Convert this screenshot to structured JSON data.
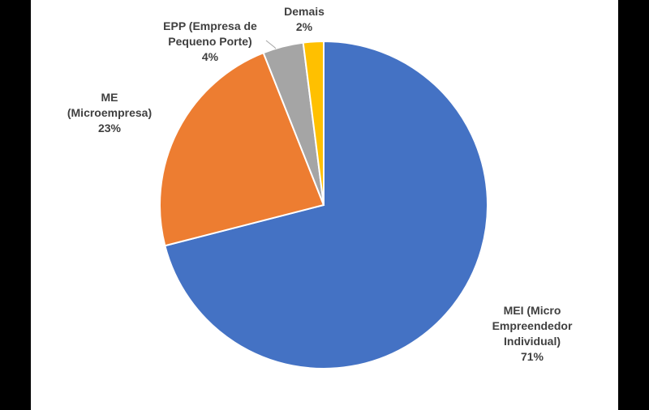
{
  "chart_data": {
    "type": "pie",
    "title": "",
    "start_angle_deg": 0,
    "direction": "clockwise",
    "slices": [
      {
        "name": "MEI (Micro Empreendedor Individual)",
        "value": 71,
        "label_lines": [
          "MEI (Micro",
          "Empreendedor",
          "Individual)",
          "71%"
        ],
        "color": "#4472C4"
      },
      {
        "name": "ME (Microempresa)",
        "value": 23,
        "label_lines": [
          "ME",
          "(Microempresa)",
          "23%"
        ],
        "color": "#ED7D31"
      },
      {
        "name": "EPP (Empresa de Pequeno Porte)",
        "value": 4,
        "label_lines": [
          "EPP (Empresa de",
          "Pequeno Porte)",
          "4%"
        ],
        "color": "#A5A5A5"
      },
      {
        "name": "Demais",
        "value": 2,
        "label_lines": [
          "Demais",
          "2%"
        ],
        "color": "#FFC000"
      }
    ],
    "legend": "none",
    "data_labels": "outside"
  },
  "colors": {
    "background": "#000000",
    "plot_background": "#ffffff",
    "label_text": "#404040",
    "leader_line": "#a6a6a6"
  }
}
